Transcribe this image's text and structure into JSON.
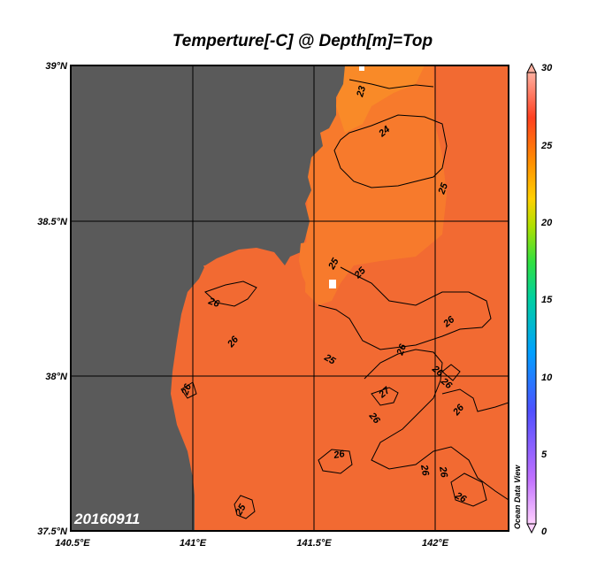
{
  "title": "Temperture[-C] @ Depth[m]=Top",
  "date": "20160911",
  "watermark": "Ocean Data View",
  "lat_ticks": [
    "39°N",
    "38.5°N",
    "38°N",
    "37.5°N"
  ],
  "lon_ticks": [
    "140.5°E",
    "141°E",
    "141.5°E",
    "142°E"
  ],
  "colorbar": {
    "ticks": [
      "30",
      "25",
      "20",
      "15",
      "10",
      "5",
      "0"
    ],
    "min": 0,
    "max": 30
  },
  "contour_labels": [
    "23",
    "24",
    "25",
    "25",
    "25",
    "25",
    "26",
    "26",
    "26",
    "26",
    "26",
    "26",
    "26",
    "26",
    "26",
    "26",
    "26",
    "26",
    "26",
    "27",
    "25"
  ],
  "colors": {
    "land": "#5a5a5a",
    "sea_warm": "#f26a32",
    "sea_25": "#f77a2c",
    "sea_24": "#f98a28",
    "grid": "#000000"
  }
}
